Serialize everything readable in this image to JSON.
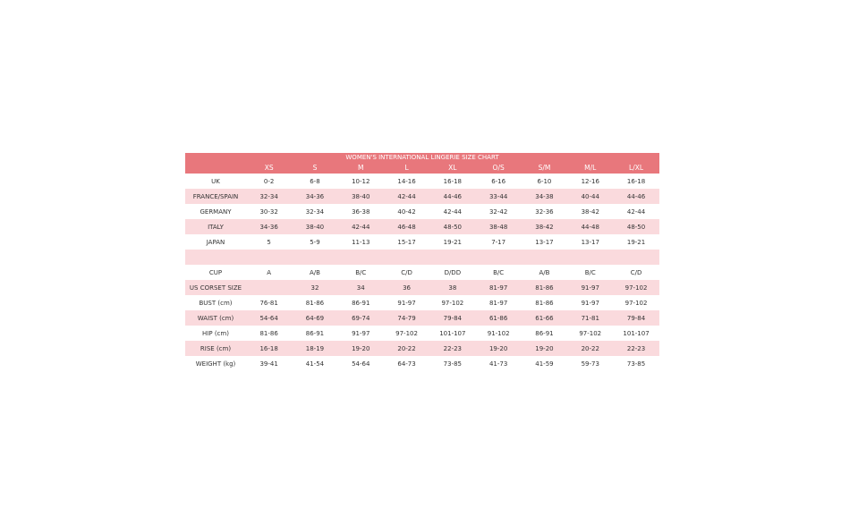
{
  "table": {
    "title": "WOMEN'S INTERNATIONAL LINGERIE SIZE CHART",
    "columns": [
      "XS",
      "S",
      "M",
      "L",
      "XL",
      "O/S",
      "S/M",
      "M/L",
      "L/XL"
    ],
    "rows": [
      {
        "label": "UK",
        "cells": [
          "0-2",
          "6-8",
          "10-12",
          "14-16",
          "16-18",
          "6-16",
          "6-10",
          "12-16",
          "16-18"
        ]
      },
      {
        "label": "FRANCE/SPAIN",
        "cells": [
          "32-34",
          "34-36",
          "38-40",
          "42-44",
          "44-46",
          "33-44",
          "34-38",
          "40-44",
          "44-46"
        ]
      },
      {
        "label": "GERMANY",
        "cells": [
          "30-32",
          "32-34",
          "36-38",
          "40-42",
          "42-44",
          "32-42",
          "32-36",
          "38-42",
          "42-44"
        ]
      },
      {
        "label": "ITALY",
        "cells": [
          "34-36",
          "38-40",
          "42-44",
          "46-48",
          "48-50",
          "38-48",
          "38-42",
          "44-48",
          "48-50"
        ]
      },
      {
        "label": "JAPAN",
        "cells": [
          "5",
          "5-9",
          "11-13",
          "15-17",
          "19-21",
          "7-17",
          "13-17",
          "13-17",
          "19-21"
        ]
      },
      {
        "label": "CUP",
        "cells": [
          "A",
          "A/B",
          "B/C",
          "C/D",
          "D/DD",
          "B/C",
          "A/B",
          "B/C",
          "C/D"
        ]
      },
      {
        "label": "US CORSET SIZE",
        "cells": [
          null,
          "32",
          "34",
          "36",
          "38",
          "81-97",
          "81-86",
          "91-97",
          "97-102"
        ]
      },
      {
        "label": "BUST (cm)",
        "cells": [
          "76-81",
          "81-86",
          "86-91",
          "91-97",
          "97-102",
          "81-97",
          "81-86",
          "91-97",
          "97-102"
        ]
      },
      {
        "label": "WAIST (cm)",
        "cells": [
          "54-64",
          "64-69",
          "69-74",
          "74-79",
          "79-84",
          "61-86",
          "61-66",
          "71-81",
          "79-84"
        ]
      },
      {
        "label": "HIP (cm)",
        "cells": [
          "81-86",
          "86-91",
          "91-97",
          "97-102",
          "101-107",
          "91-102",
          "86-91",
          "97-102",
          "101-107"
        ]
      },
      {
        "label": "RISE (cm)",
        "cells": [
          "16-18",
          "18-19",
          "19-20",
          "20-22",
          "22-23",
          "19-20",
          "19-20",
          "20-22",
          "22-23"
        ]
      },
      {
        "label": "WEIGHT (kg)",
        "cells": [
          "39-41",
          "41-54",
          "54-64",
          "64-73",
          "73-85",
          "41-73",
          "41-59",
          "59-73",
          "73-85"
        ]
      }
    ]
  }
}
